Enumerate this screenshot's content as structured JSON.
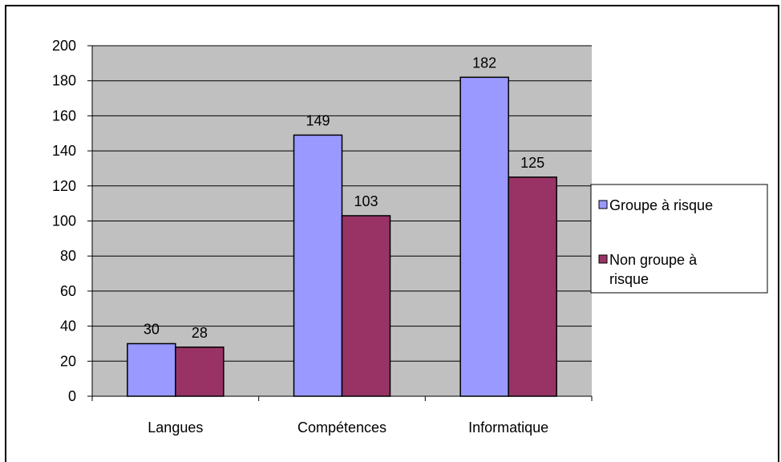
{
  "chart_data": {
    "type": "bar",
    "title": "",
    "xlabel": "",
    "ylabel": "",
    "categories": [
      "Langues",
      "Compétences",
      "Informatique"
    ],
    "series": [
      {
        "name": "Groupe à risque",
        "values": [
          30,
          149,
          182
        ],
        "color": "#9999ff"
      },
      {
        "name": "Non groupe à risque",
        "values": [
          28,
          103,
          125
        ],
        "color": "#993366"
      }
    ],
    "ylim": [
      0,
      200
    ],
    "yticks": [
      0,
      20,
      40,
      60,
      80,
      100,
      120,
      140,
      160,
      180,
      200
    ],
    "grid": true,
    "plot_background": "#c0c0c0",
    "legend": {
      "position": "right",
      "entries": [
        {
          "lines": [
            "Groupe à risque"
          ]
        },
        {
          "lines": [
            "Non groupe à",
            "risque"
          ]
        }
      ]
    }
  }
}
